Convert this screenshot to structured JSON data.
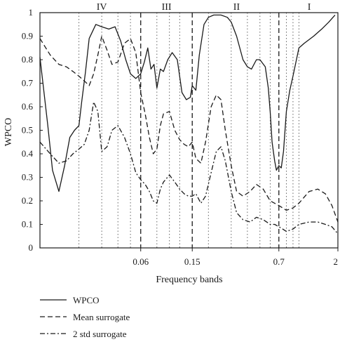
{
  "chart_data": {
    "type": "line",
    "ylabel": "WPCO",
    "xlabel": "Frequency bands",
    "ylim": [
      0,
      1
    ],
    "yticks": [
      "0",
      "0.1",
      "0.2",
      "0.3",
      "0.4",
      "0.5",
      "0.6",
      "0.7",
      "0.8",
      "0.9",
      "1"
    ],
    "xlim": [
      0.01,
      2
    ],
    "xscale": "log",
    "xticks": [
      "0.06",
      "0.15",
      "0.7",
      "2"
    ],
    "band_boundaries": [
      0.06,
      0.15,
      0.7
    ],
    "band_labels": [
      {
        "label": "IV",
        "x": 0.03
      },
      {
        "label": "III",
        "x": 0.095
      },
      {
        "label": "II",
        "x": 0.33
      },
      {
        "label": "I",
        "x": 1.2
      }
    ],
    "grid_verticals": [
      0.02,
      0.03,
      0.04,
      0.05,
      0.08,
      0.1,
      0.12,
      0.2,
      0.3,
      0.4,
      0.5,
      0.6,
      0.8,
      0.9,
      1.0
    ],
    "legend_placement": "bottom-left, below plot",
    "series": [
      {
        "name": "WPCO",
        "style": "solid",
        "x": [
          0.01,
          0.0115,
          0.0125,
          0.014,
          0.0155,
          0.017,
          0.0185,
          0.02,
          0.021,
          0.0225,
          0.024,
          0.027,
          0.03,
          0.034,
          0.038,
          0.042,
          0.046,
          0.05,
          0.055,
          0.06,
          0.064,
          0.068,
          0.072,
          0.076,
          0.08,
          0.085,
          0.09,
          0.097,
          0.105,
          0.115,
          0.125,
          0.135,
          0.145,
          0.15,
          0.16,
          0.17,
          0.185,
          0.2,
          0.22,
          0.25,
          0.28,
          0.3,
          0.33,
          0.37,
          0.4,
          0.43,
          0.47,
          0.5,
          0.55,
          0.58,
          0.6,
          0.62,
          0.65,
          0.67,
          0.7,
          0.73,
          0.76,
          0.8,
          0.85,
          0.9,
          1.0,
          1.1,
          1.3,
          1.5,
          1.7,
          1.9
        ],
        "y": [
          0.81,
          0.52,
          0.33,
          0.24,
          0.35,
          0.47,
          0.5,
          0.52,
          0.62,
          0.75,
          0.89,
          0.95,
          0.94,
          0.93,
          0.94,
          0.88,
          0.8,
          0.74,
          0.72,
          0.74,
          0.79,
          0.85,
          0.76,
          0.78,
          0.68,
          0.76,
          0.75,
          0.8,
          0.83,
          0.8,
          0.66,
          0.63,
          0.64,
          0.69,
          0.67,
          0.82,
          0.95,
          0.98,
          0.99,
          0.99,
          0.98,
          0.96,
          0.9,
          0.8,
          0.77,
          0.76,
          0.8,
          0.8,
          0.77,
          0.68,
          0.58,
          0.45,
          0.37,
          0.33,
          0.35,
          0.34,
          0.41,
          0.58,
          0.67,
          0.73,
          0.85,
          0.87,
          0.9,
          0.93,
          0.96,
          0.99
        ]
      },
      {
        "name": "Mean surrogate",
        "style": "dashed",
        "x": [
          0.01,
          0.012,
          0.014,
          0.016,
          0.018,
          0.02,
          0.022,
          0.024,
          0.026,
          0.028,
          0.03,
          0.033,
          0.036,
          0.04,
          0.045,
          0.05,
          0.055,
          0.06,
          0.065,
          0.07,
          0.075,
          0.08,
          0.085,
          0.09,
          0.1,
          0.11,
          0.12,
          0.13,
          0.14,
          0.15,
          0.16,
          0.175,
          0.19,
          0.21,
          0.23,
          0.25,
          0.27,
          0.3,
          0.33,
          0.37,
          0.42,
          0.47,
          0.53,
          0.6,
          0.65,
          0.7,
          0.75,
          0.8,
          0.9,
          1.0,
          1.2,
          1.4,
          1.6,
          1.8,
          2.0
        ],
        "y": [
          0.89,
          0.82,
          0.78,
          0.77,
          0.75,
          0.73,
          0.71,
          0.69,
          0.74,
          0.82,
          0.9,
          0.84,
          0.78,
          0.79,
          0.87,
          0.89,
          0.83,
          0.66,
          0.57,
          0.47,
          0.4,
          0.42,
          0.52,
          0.57,
          0.58,
          0.5,
          0.46,
          0.44,
          0.43,
          0.45,
          0.38,
          0.36,
          0.45,
          0.6,
          0.65,
          0.63,
          0.5,
          0.35,
          0.24,
          0.22,
          0.24,
          0.27,
          0.25,
          0.2,
          0.19,
          0.18,
          0.17,
          0.16,
          0.17,
          0.19,
          0.24,
          0.25,
          0.23,
          0.18,
          0.11
        ]
      },
      {
        "name": "2 std surrogate",
        "style": "dashdot",
        "x": [
          0.01,
          0.012,
          0.014,
          0.016,
          0.018,
          0.02,
          0.022,
          0.024,
          0.026,
          0.028,
          0.03,
          0.033,
          0.036,
          0.04,
          0.045,
          0.05,
          0.055,
          0.06,
          0.065,
          0.07,
          0.075,
          0.08,
          0.085,
          0.09,
          0.1,
          0.11,
          0.12,
          0.13,
          0.14,
          0.15,
          0.16,
          0.175,
          0.19,
          0.21,
          0.23,
          0.25,
          0.27,
          0.3,
          0.33,
          0.37,
          0.42,
          0.47,
          0.53,
          0.6,
          0.65,
          0.7,
          0.75,
          0.8,
          0.9,
          1.0,
          1.2,
          1.4,
          1.6,
          1.8,
          2.0
        ],
        "y": [
          0.45,
          0.4,
          0.36,
          0.37,
          0.4,
          0.42,
          0.44,
          0.5,
          0.62,
          0.58,
          0.41,
          0.43,
          0.5,
          0.52,
          0.47,
          0.4,
          0.32,
          0.29,
          0.27,
          0.24,
          0.2,
          0.19,
          0.25,
          0.28,
          0.31,
          0.28,
          0.25,
          0.23,
          0.22,
          0.22,
          0.23,
          0.19,
          0.22,
          0.32,
          0.41,
          0.43,
          0.37,
          0.24,
          0.15,
          0.12,
          0.11,
          0.13,
          0.12,
          0.1,
          0.1,
          0.09,
          0.08,
          0.07,
          0.08,
          0.1,
          0.11,
          0.11,
          0.1,
          0.09,
          0.06
        ]
      }
    ]
  }
}
